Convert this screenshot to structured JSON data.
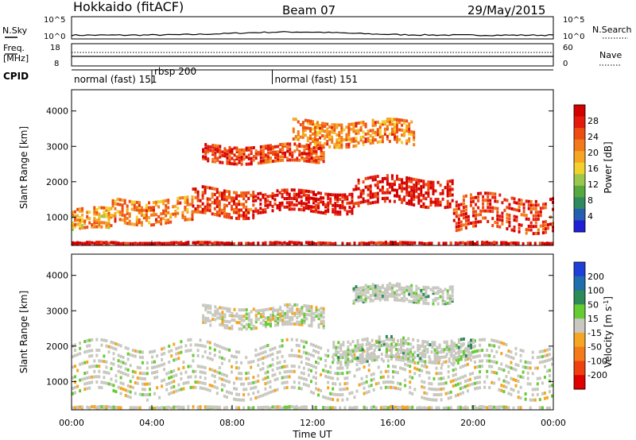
{
  "header": {
    "station": "Hokkaido (fitACF)",
    "beam": "Beam 07",
    "date": "29/May/2015"
  },
  "noise_panel": {
    "left_label": "N.Sky",
    "right_label": "N.Search",
    "y_ticks_left": [
      "10^5",
      "10^0"
    ],
    "y_ticks_right": [
      "10^5",
      "10^0"
    ]
  },
  "freq_panel": {
    "label_line1": "Freq.",
    "label_line2": "[MHz]",
    "right_label": "Nave",
    "y_ticks_left": [
      "18",
      "8"
    ],
    "y_ticks_right": [
      "60",
      "0"
    ]
  },
  "cpid_panel": {
    "label": "CPID",
    "segments": [
      {
        "label": "normal (fast) 151",
        "start_hour": 0.0
      },
      {
        "label": "rbsp 200",
        "start_hour": 4.0
      },
      {
        "label": "normal (fast) 151",
        "start_hour": 10.0
      }
    ]
  },
  "chart_data": [
    {
      "type": "heatmap",
      "name": "power",
      "ylabel": "Slant Range [km]",
      "yticks": [
        1000,
        2000,
        3000,
        4000
      ],
      "ylim": [
        200,
        4600
      ],
      "xlim_hours": [
        0,
        24
      ],
      "colorbar": {
        "label": "Power [dB]",
        "ticks": [
          "28",
          "24",
          "20",
          "16",
          "12",
          "8",
          "4"
        ],
        "range": [
          0,
          30
        ],
        "colors": [
          "#1f1fd6",
          "#275fb0",
          "#2f8a5f",
          "#56a83f",
          "#9bc74b",
          "#f2d12c",
          "#f5a623",
          "#f27a1a",
          "#ee4d12",
          "#e41a0c",
          "#d40000"
        ]
      },
      "echo_bands": [
        {
          "t0": 0.0,
          "t1": 2.0,
          "r0": 700,
          "r1": 1300,
          "dB": 18
        },
        {
          "t0": 2.0,
          "t1": 6.0,
          "r0": 900,
          "r1": 1600,
          "dB": 20
        },
        {
          "t0": 6.0,
          "t1": 9.0,
          "r0": 1100,
          "r1": 1900,
          "dB": 24
        },
        {
          "t0": 9.0,
          "t1": 14.0,
          "r0": 1200,
          "r1": 1800,
          "dB": 27
        },
        {
          "t0": 14.0,
          "t1": 19.0,
          "r0": 1400,
          "r1": 2200,
          "dB": 27
        },
        {
          "t0": 19.0,
          "t1": 24.0,
          "r0": 700,
          "r1": 1700,
          "dB": 25
        },
        {
          "t0": 6.5,
          "t1": 12.5,
          "r0": 2600,
          "r1": 3100,
          "dB": 24
        },
        {
          "t0": 11.0,
          "t1": 17.0,
          "r0": 3100,
          "r1": 3800,
          "dB": 20
        },
        {
          "t0": 0.0,
          "t1": 24.0,
          "r0": 200,
          "r1": 330,
          "dB": 28
        }
      ]
    },
    {
      "type": "heatmap",
      "name": "velocity",
      "ylabel": "Slant Range [km]",
      "yticks": [
        1000,
        2000,
        3000,
        4000
      ],
      "ylim": [
        200,
        4600
      ],
      "xlim_hours": [
        0,
        24
      ],
      "xlabel": "Time UT",
      "xticks": [
        "00:00",
        "04:00",
        "08:00",
        "12:00",
        "16:00",
        "20:00",
        "00:00"
      ],
      "colorbar": {
        "label": "Velocity [m s",
        "label_sup": "-1",
        "label_end": "]",
        "ticks": [
          "200",
          "100",
          "50",
          "15",
          "-15",
          "-50",
          "-100",
          "-200"
        ],
        "colors": [
          "#1f3fd8",
          "#1f6fae",
          "#2e8b57",
          "#66cc33",
          "#c8c8c0",
          "#f5a623",
          "#f57a1a",
          "#f04010",
          "#e00000"
        ]
      },
      "echo_bands": [
        {
          "t0": 0.0,
          "t1": 24.0,
          "r0": 700,
          "r1": 2200,
          "v": 0
        },
        {
          "t0": 13.0,
          "t1": 20.0,
          "r0": 1600,
          "r1": 2300,
          "v": 30
        },
        {
          "t0": 6.5,
          "t1": 12.5,
          "r0": 2600,
          "r1": 3200,
          "v": 0
        },
        {
          "t0": 14.0,
          "t1": 19.0,
          "r0": 3300,
          "r1": 3800,
          "v": 40
        },
        {
          "t0": 0.0,
          "t1": 24.0,
          "r0": 200,
          "r1": 330,
          "v": 20
        }
      ]
    }
  ]
}
